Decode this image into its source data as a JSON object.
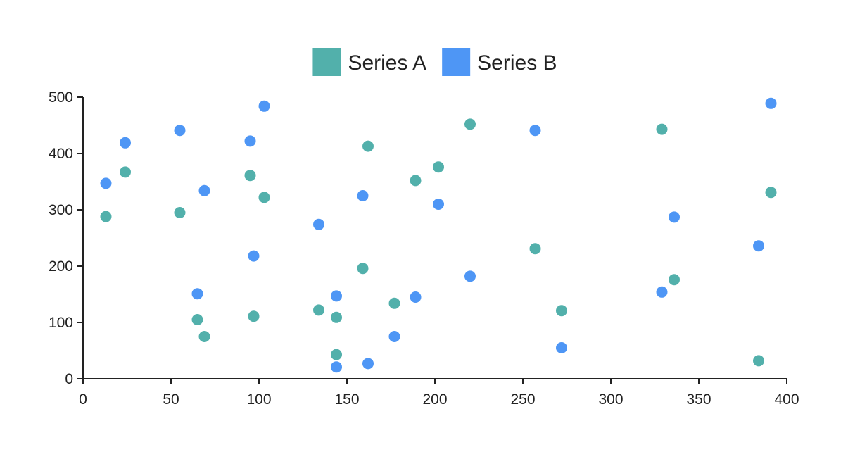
{
  "chart_data": {
    "type": "scatter",
    "title": "",
    "xlabel": "",
    "ylabel": "",
    "xlim": [
      0,
      400
    ],
    "ylim": [
      0,
      500
    ],
    "x_ticks": [
      0,
      50,
      100,
      150,
      200,
      250,
      300,
      350,
      400
    ],
    "y_ticks": [
      0,
      100,
      200,
      300,
      400,
      500
    ],
    "x_tick_labels": [
      "0",
      "50",
      "100",
      "150",
      "200",
      "250",
      "300",
      "350",
      "400"
    ],
    "y_tick_labels": [
      "0",
      "100",
      "200",
      "300",
      "400",
      "500"
    ],
    "grid": false,
    "legend": {
      "position": "top-center",
      "entries": [
        {
          "label": "Series A",
          "color": "#52b0ab"
        },
        {
          "label": "Series B",
          "color": "#4e96f5"
        }
      ]
    },
    "series": [
      {
        "name": "Series A",
        "color": "#52b0ab",
        "points": [
          {
            "x": 13,
            "y": 288
          },
          {
            "x": 24,
            "y": 367
          },
          {
            "x": 55,
            "y": 295
          },
          {
            "x": 65,
            "y": 105
          },
          {
            "x": 69,
            "y": 75
          },
          {
            "x": 95,
            "y": 361
          },
          {
            "x": 97,
            "y": 111
          },
          {
            "x": 103,
            "y": 322
          },
          {
            "x": 134,
            "y": 122
          },
          {
            "x": 144,
            "y": 109
          },
          {
            "x": 144,
            "y": 43
          },
          {
            "x": 159,
            "y": 196
          },
          {
            "x": 162,
            "y": 413
          },
          {
            "x": 177,
            "y": 134
          },
          {
            "x": 189,
            "y": 352
          },
          {
            "x": 202,
            "y": 376
          },
          {
            "x": 220,
            "y": 452
          },
          {
            "x": 257,
            "y": 231
          },
          {
            "x": 272,
            "y": 121
          },
          {
            "x": 329,
            "y": 443
          },
          {
            "x": 336,
            "y": 176
          },
          {
            "x": 384,
            "y": 32
          },
          {
            "x": 391,
            "y": 331
          }
        ]
      },
      {
        "name": "Series B",
        "color": "#4e96f5",
        "points": [
          {
            "x": 13,
            "y": 347
          },
          {
            "x": 24,
            "y": 419
          },
          {
            "x": 55,
            "y": 441
          },
          {
            "x": 65,
            "y": 151
          },
          {
            "x": 69,
            "y": 334
          },
          {
            "x": 95,
            "y": 422
          },
          {
            "x": 97,
            "y": 218
          },
          {
            "x": 103,
            "y": 484
          },
          {
            "x": 134,
            "y": 274
          },
          {
            "x": 144,
            "y": 147
          },
          {
            "x": 144,
            "y": 21
          },
          {
            "x": 159,
            "y": 325
          },
          {
            "x": 162,
            "y": 27
          },
          {
            "x": 177,
            "y": 75
          },
          {
            "x": 189,
            "y": 145
          },
          {
            "x": 202,
            "y": 310
          },
          {
            "x": 220,
            "y": 182
          },
          {
            "x": 257,
            "y": 441
          },
          {
            "x": 272,
            "y": 55
          },
          {
            "x": 329,
            "y": 154
          },
          {
            "x": 336,
            "y": 287
          },
          {
            "x": 384,
            "y": 236
          },
          {
            "x": 391,
            "y": 489
          }
        ]
      }
    ]
  }
}
